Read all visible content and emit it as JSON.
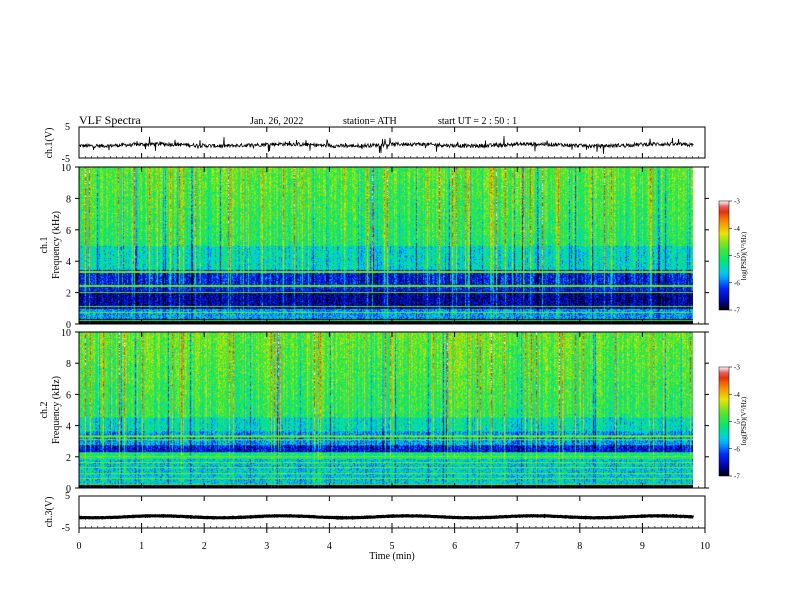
{
  "header": {
    "title": "VLF  Spectra",
    "date": "Jan. 26, 2022",
    "station": "station= ATH",
    "start": "start  UT  =   2  : 50 : 1"
  },
  "chart_data": [
    {
      "type": "line",
      "panel": "ch1-waveform",
      "ylabel": "ch.1(V)",
      "ylim": [
        -5,
        5
      ],
      "yticks": [
        "5",
        "-5"
      ],
      "xlim": [
        0,
        10
      ],
      "x_end": 9.82,
      "baseline": -0.8,
      "color": "#000000"
    },
    {
      "type": "heatmap",
      "panel": "ch1-spectrogram",
      "ylabel": "ch.1\nFrequency  (kHz)",
      "ylim": [
        0,
        10
      ],
      "yticks": [
        "0",
        "2",
        "4",
        "6",
        "8",
        "10"
      ],
      "xlim": [
        0,
        10
      ],
      "x_end": 9.82,
      "colorbar": {
        "label": "log(PSD)(V²/Hz)",
        "range": [
          -7,
          -3
        ],
        "ticks": [
          "-3",
          "-4",
          "-5",
          "-6",
          "-7"
        ]
      }
    },
    {
      "type": "heatmap",
      "panel": "ch2-spectrogram",
      "ylabel": "ch.2\nFrequency  (kHz)",
      "ylim": [
        0,
        10
      ],
      "yticks": [
        "0",
        "2",
        "4",
        "6",
        "8",
        "10"
      ],
      "xlim": [
        0,
        10
      ],
      "x_end": 9.82,
      "colorbar": {
        "label": "log(PSD)(V²/Hz)",
        "range": [
          -7,
          -3
        ],
        "ticks": [
          "-3",
          "-4",
          "-5",
          "-6",
          "-7"
        ]
      }
    },
    {
      "type": "line",
      "panel": "ch3-waveform",
      "ylabel": "ch.3(V)",
      "ylim": [
        -5,
        5
      ],
      "yticks": [
        "5",
        "-5"
      ],
      "xlim": [
        0,
        10
      ],
      "x_end": 9.82,
      "baseline": -1.5,
      "color": "#000000"
    }
  ],
  "xaxis": {
    "label": "Time  (min)",
    "ticks": [
      "0",
      "1",
      "2",
      "3",
      "4",
      "5",
      "6",
      "7",
      "8",
      "9",
      "10"
    ]
  }
}
